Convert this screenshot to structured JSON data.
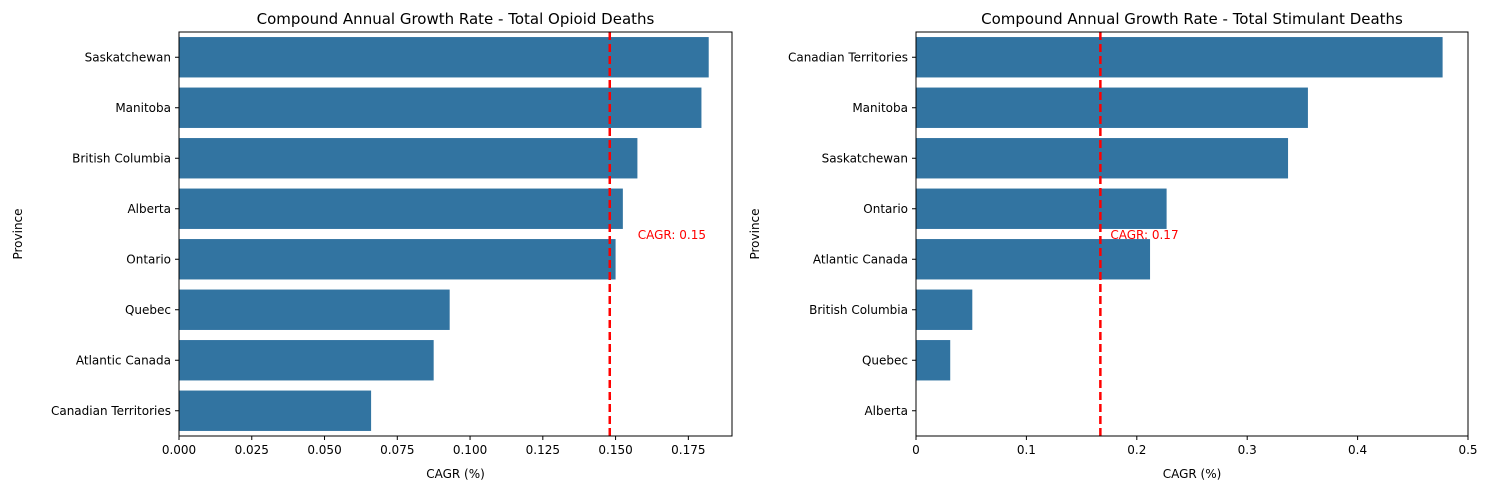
{
  "colors": {
    "bar": "#3274a1",
    "reference_line": "#ff0000",
    "axis": "#000000",
    "background": "#ffffff"
  },
  "chart_data": [
    {
      "type": "bar",
      "orientation": "horizontal",
      "title": "Compound Annual Growth Rate - Total Opioid Deaths",
      "xlabel": "CAGR (%)",
      "ylabel": "Province",
      "xlim": [
        0,
        0.19
      ],
      "x_ticks": [
        0.0,
        0.025,
        0.05,
        0.075,
        0.1,
        0.125,
        0.15,
        0.175
      ],
      "x_tick_labels": [
        "0.000",
        "0.025",
        "0.050",
        "0.075",
        "0.100",
        "0.125",
        "0.150",
        "0.175"
      ],
      "categories": [
        "Saskatchewan",
        "Manitoba",
        "British Columbia",
        "Alberta",
        "Ontario",
        "Quebec",
        "Atlantic Canada",
        "Canadian Territories"
      ],
      "values": [
        0.182,
        0.1795,
        0.1575,
        0.1525,
        0.15,
        0.093,
        0.0875,
        0.066
      ],
      "reference_line": {
        "value": 0.148,
        "style": "dashed",
        "label": "CAGR: 0.15"
      },
      "grid": false
    },
    {
      "type": "bar",
      "orientation": "horizontal",
      "title": "Compound Annual Growth Rate - Total Stimulant Deaths",
      "xlabel": "CAGR (%)",
      "ylabel": "Province",
      "xlim": [
        0,
        0.5
      ],
      "x_ticks": [
        0,
        0.1,
        0.2,
        0.3,
        0.4,
        0.5
      ],
      "x_tick_labels": [
        "0",
        "0.1",
        "0.2",
        "0.3",
        "0.4",
        "0.5"
      ],
      "categories": [
        "Canadian Territories",
        "Manitoba",
        "Saskatchewan",
        "Ontario",
        "Atlantic Canada",
        "British Columbia",
        "Quebec",
        "Alberta"
      ],
      "values": [
        0.477,
        0.355,
        0.337,
        0.227,
        0.212,
        0.051,
        0.031,
        0.0
      ],
      "reference_line": {
        "value": 0.167,
        "style": "dashed",
        "label": "CAGR: 0.17"
      },
      "grid": false
    }
  ]
}
